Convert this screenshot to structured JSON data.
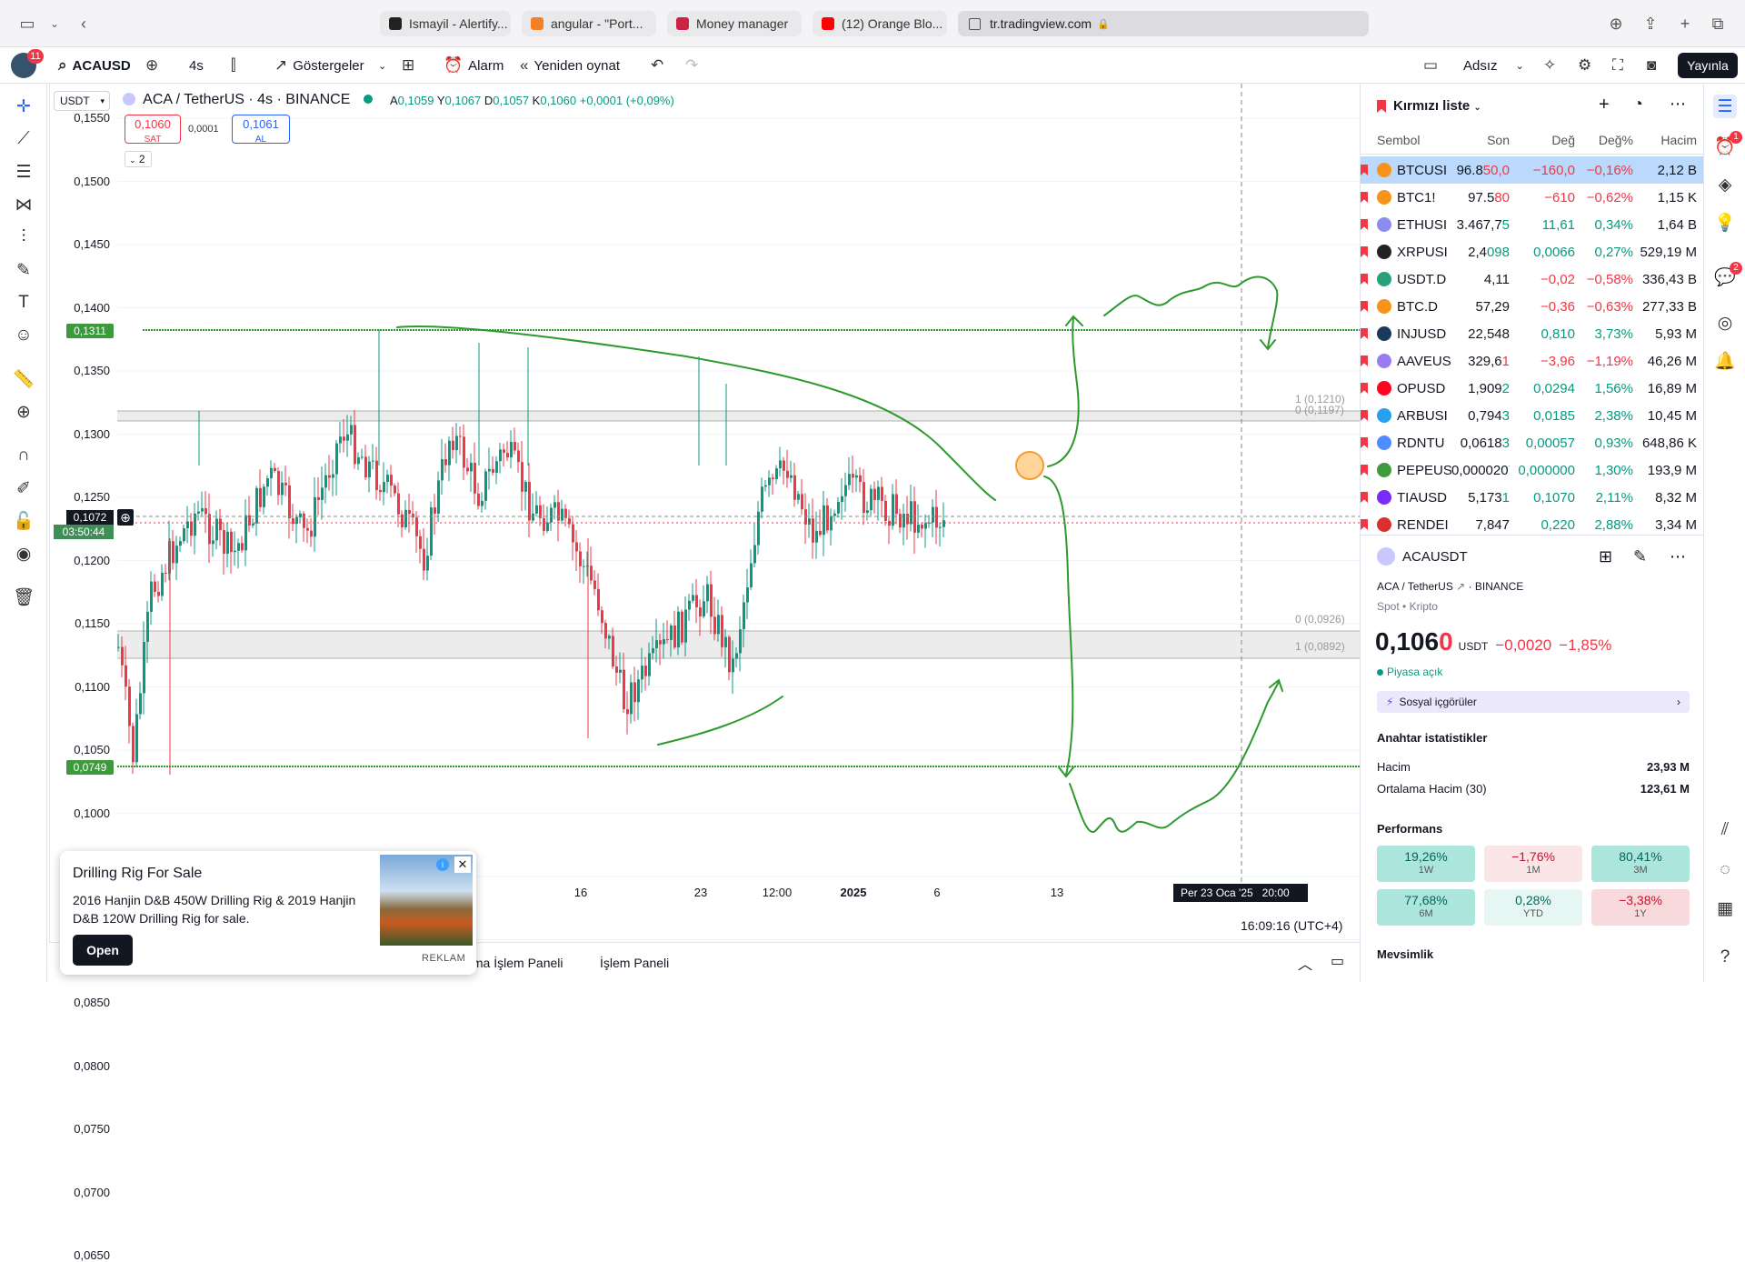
{
  "browser": {
    "tabs": [
      "Ismayil - Alertify...",
      "angular - \"Port...",
      "Money manager",
      "(12) Orange Blo..."
    ],
    "address": "tr.tradingview.com"
  },
  "toolbar": {
    "notif_count": "11",
    "symbol": "ACAUSD",
    "interval": "4s",
    "indicators": "Göstergeler",
    "alert": "Alarm",
    "replay": "Yeniden oynat",
    "layout_name": "Adsız",
    "publish": "Yayınla"
  },
  "chart": {
    "currency": "USDT",
    "title": "ACA / TetherUS · 4s · BINANCE",
    "ohlc": {
      "a_label": "A",
      "a": "0,1059",
      "y_label": "Y",
      "y": "0,1067",
      "d_label": "D",
      "d": "0,1057",
      "k_label": "K",
      "k": "0,1060",
      "change": "+0,0001 (+0,09%)"
    },
    "sell_price": "0,1060",
    "sell_label": "SAT",
    "spread": "0,0001",
    "buy_price": "0,1061",
    "buy_label": "AL",
    "indicator_count": "2",
    "price_axis": [
      "0,1550",
      "0,1500",
      "0,1450",
      "0,1400",
      "0,1350",
      "0,1300",
      "0,1250",
      "0,1200",
      "0,1150",
      "0,1100",
      "0,1050",
      "0,1000",
      "0,0950",
      "0,0900",
      "0,0850",
      "0,0800",
      "0,0750",
      "0,0700",
      "0,0650"
    ],
    "line_upper_label": "0,1311",
    "line_lower_label": "0,0749",
    "current_price_label": "0,1072",
    "countdown": "03:50:44",
    "fib_top_1": "1 (0,1210)",
    "fib_top_0": "0 (0,1197)",
    "fib_bot_0": "0 (0,0926)",
    "fib_bot_1": "1 (0,0892)",
    "time_axis": [
      "16",
      "23",
      "12:00",
      "2025",
      "6",
      "13"
    ],
    "crosshair_time": "Per 23 Oca '25   20:00",
    "clock": "16:09:16 (UTC+4)",
    "colors": {
      "up": "#089981",
      "down": "#f23645",
      "drawing": "#2e9a2e",
      "fib_band": "#e9e9e9"
    }
  },
  "bottom_tabs": {
    "tab1": "tma İşlem Paneli",
    "tab2": "İşlem Paneli"
  },
  "ad": {
    "title": "Drilling Rig For Sale",
    "body": "2016 Hanjin D&B 450W Drilling Rig & 2019 Hanjin D&B 120W Drilling Rig for sale.",
    "button": "Open",
    "tag": "REKLAM"
  },
  "watchlist": {
    "title": "Kırmızı liste",
    "headers": {
      "symbol": "Sembol",
      "last": "Son",
      "change": "Değ",
      "change_pct": "Değ%",
      "volume": "Hacim"
    },
    "rows": [
      {
        "symbol": "BTCUSI",
        "last": "96.8",
        "last_tail": "50,0",
        "change": "−160,0",
        "pct": "−0,16%",
        "vol": "2,12 B",
        "dir": "down",
        "color": "#f7931a"
      },
      {
        "symbol": "BTC1!",
        "last": "97.5",
        "last_tail": "80",
        "change": "−610",
        "pct": "−0,62%",
        "vol": "1,15 K",
        "dir": "down",
        "color": "#f7931a"
      },
      {
        "symbol": "ETHUSI",
        "last": "3.467,7",
        "last_tail": "5",
        "change": "11,61",
        "pct": "0,34%",
        "vol": "1,64 B",
        "dir": "up",
        "color": "#8c8cf0"
      },
      {
        "symbol": "XRPUSI",
        "last": "2,4",
        "last_tail": "098",
        "change": "0,0066",
        "pct": "0,27%",
        "vol": "529,19 M",
        "dir": "up",
        "color": "#222222"
      },
      {
        "symbol": "USDT.D",
        "last": "4,11",
        "last_tail": "",
        "change": "−0,02",
        "pct": "−0,58%",
        "vol": "336,43 B",
        "dir": "down",
        "color": "#26a17b"
      },
      {
        "symbol": "BTC.D",
        "last": "57,29",
        "last_tail": "",
        "change": "−0,36",
        "pct": "−0,63%",
        "vol": "277,33 B",
        "dir": "down",
        "color": "#f7931a"
      },
      {
        "symbol": "INJUSD",
        "last": "22,548",
        "last_tail": "",
        "change": "0,810",
        "pct": "3,73%",
        "vol": "5,93 M",
        "dir": "up",
        "color": "#1a3a5c"
      },
      {
        "symbol": "AAVEUS",
        "last": "329,6",
        "last_tail": "1",
        "change": "−3,96",
        "pct": "−1,19%",
        "vol": "46,26 M",
        "dir": "down",
        "color": "#9a7cf0"
      },
      {
        "symbol": "OPUSD",
        "last": "1,909",
        "last_tail": "2",
        "change": "0,0294",
        "pct": "1,56%",
        "vol": "16,89 M",
        "dir": "up",
        "color": "#ff0420"
      },
      {
        "symbol": "ARBUSI",
        "last": "0,794",
        "last_tail": "3",
        "change": "0,0185",
        "pct": "2,38%",
        "vol": "10,45 M",
        "dir": "up",
        "color": "#28a0f0"
      },
      {
        "symbol": "RDNTU",
        "last": "0,0618",
        "last_tail": "3",
        "change": "0,00057",
        "pct": "0,93%",
        "vol": "648,86 K",
        "dir": "up",
        "color": "#4f8cff"
      },
      {
        "symbol": "PEPEUS",
        "last": "0,000020",
        "last_tail": "7",
        "change": "0,000000",
        "pct": "1,30%",
        "vol": "193,9 M",
        "dir": "up",
        "color": "#3d9a3d"
      },
      {
        "symbol": "TIAUSD",
        "last": "5,173",
        "last_tail": "1",
        "change": "0,1070",
        "pct": "2,11%",
        "vol": "8,32 M",
        "dir": "up",
        "color": "#7b2bf9"
      },
      {
        "symbol": "RENDEI",
        "last": "7,847",
        "last_tail": "",
        "change": "0,220",
        "pct": "2,88%",
        "vol": "3,34 M",
        "dir": "up",
        "color": "#d9302f"
      }
    ]
  },
  "details": {
    "symbol": "ACAUSDT",
    "desc": "ACA / TetherUS",
    "exchange": "BINANCE",
    "meta1": "Spot",
    "meta2": "Kripto",
    "price_main": "0,106",
    "price_last": "0",
    "currency": "USDT",
    "change": "−0,0020",
    "change_pct": "−1,85%",
    "market_status": "Piyasa açık",
    "social": "Sosyal içgörüler",
    "key_stats_title": "Anahtar istatistikler",
    "volume_label": "Hacim",
    "volume": "23,93 M",
    "avg_volume_label": "Ortalama Hacim (30)",
    "avg_volume": "123,61 M",
    "performance_title": "Performans",
    "performance": [
      {
        "value": "19,26%",
        "period": "1W",
        "dir": "up"
      },
      {
        "value": "−1,76%",
        "period": "1M",
        "dir": "down"
      },
      {
        "value": "80,41%",
        "period": "3M",
        "dir": "up"
      },
      {
        "value": "77,68%",
        "period": "6M",
        "dir": "up"
      },
      {
        "value": "0,28%",
        "period": "YTD",
        "dir": "up"
      },
      {
        "value": "−3,38%",
        "period": "1Y",
        "dir": "down"
      }
    ],
    "seasonality_title": "Mevsimlik"
  },
  "right_toolbar_badges": {
    "alerts": "1",
    "chat": "2"
  }
}
